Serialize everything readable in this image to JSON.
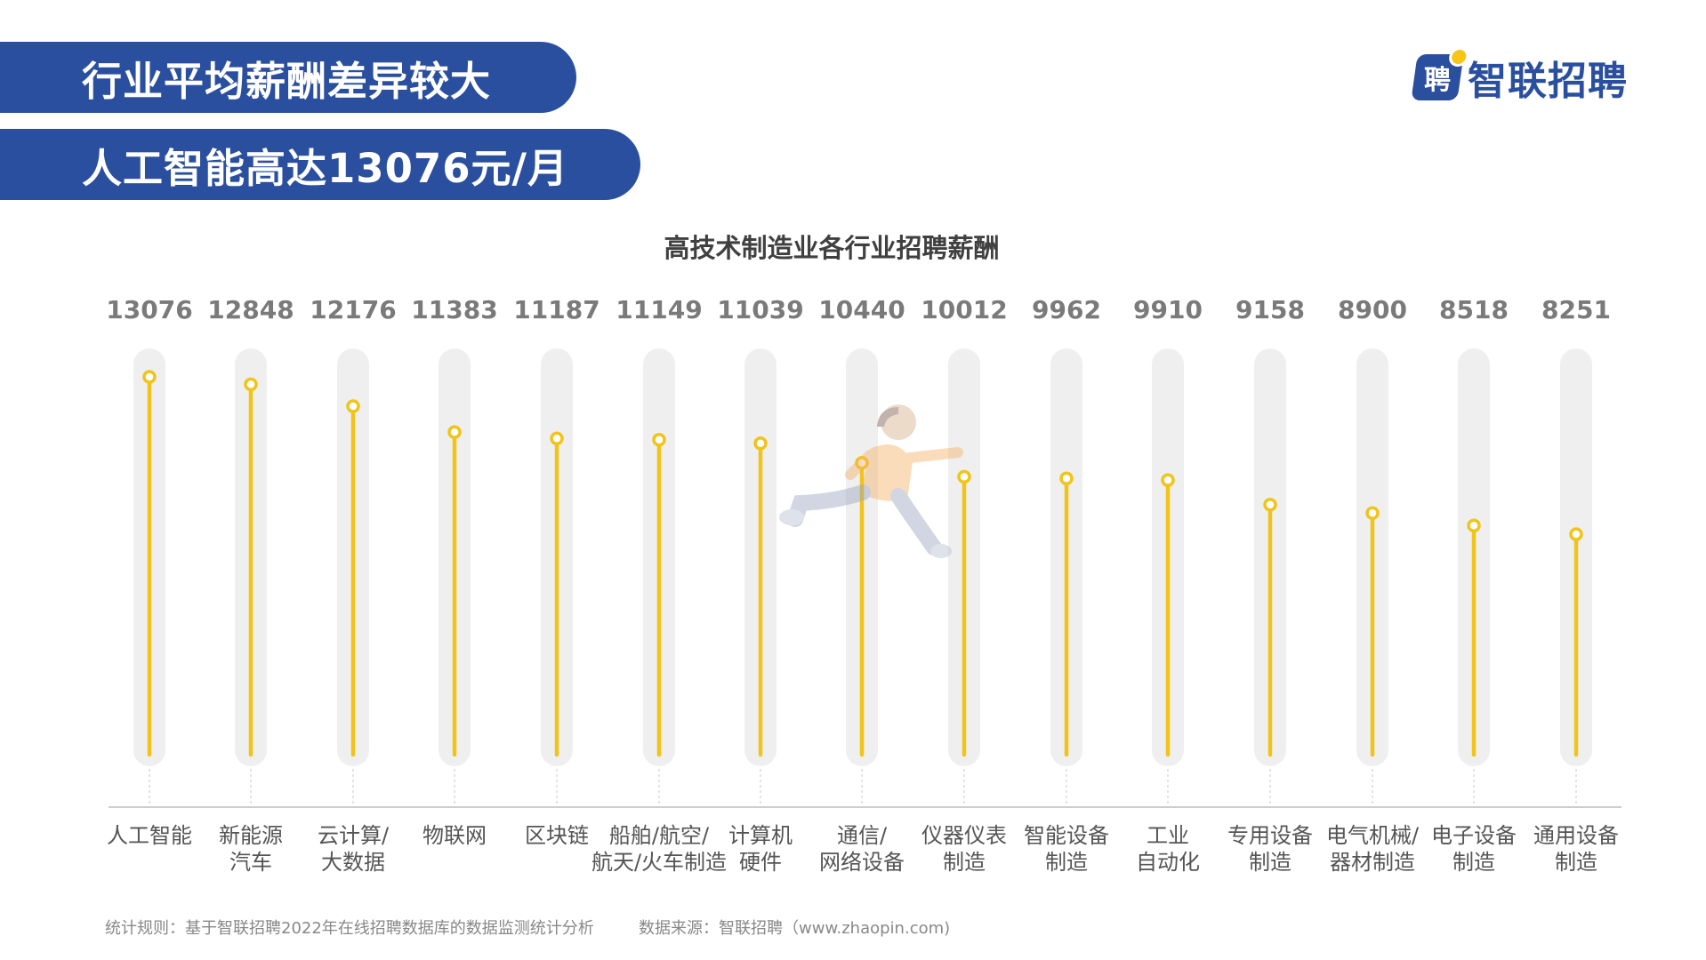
{
  "header": {
    "banner1": "行业平均薪酬差异较大",
    "banner2": "人工智能高达13076元/月"
  },
  "logo": {
    "mark_glyph": "聘",
    "text": "智联招聘",
    "icon": "zhaopin-logo-icon",
    "brand_color": "#2b4f9f",
    "accent_color": "#f5c518"
  },
  "decor": {
    "illustration": "running-person-illustration"
  },
  "colors": {
    "line": "#f0c419",
    "track": "#efefef",
    "axis": "#bdbdbd"
  },
  "chart_data": {
    "type": "lollipop",
    "title": "高技术制造业各行业招聘薪酬",
    "categories": [
      [
        "人工智能"
      ],
      [
        "新能源",
        "汽车"
      ],
      [
        "云计算/",
        "大数据"
      ],
      [
        "物联网"
      ],
      [
        "区块链"
      ],
      [
        "船舶/航空/",
        "航天/火车制造"
      ],
      [
        "计算机",
        "硬件"
      ],
      [
        "通信/",
        "网络设备"
      ],
      [
        "仪器仪表",
        "制造"
      ],
      [
        "智能设备",
        "制造"
      ],
      [
        "工业",
        "自动化"
      ],
      [
        "专用设备",
        "制造"
      ],
      [
        "电气机械/",
        "器材制造"
      ],
      [
        "电子设备",
        "制造"
      ],
      [
        "通用设备",
        "制造"
      ]
    ],
    "values": [
      13076,
      12848,
      12176,
      11383,
      11187,
      11149,
      11039,
      10440,
      10012,
      9962,
      9910,
      9158,
      8900,
      8518,
      8251
    ],
    "ylim": [
      0,
      14000
    ],
    "grid": false,
    "legend": "none"
  },
  "footer": {
    "rule": "统计规则：基于智联招聘2022年在线招聘数据库的数据监测统计分析",
    "source": "数据来源：智联招聘（www.zhaopin.com)"
  }
}
